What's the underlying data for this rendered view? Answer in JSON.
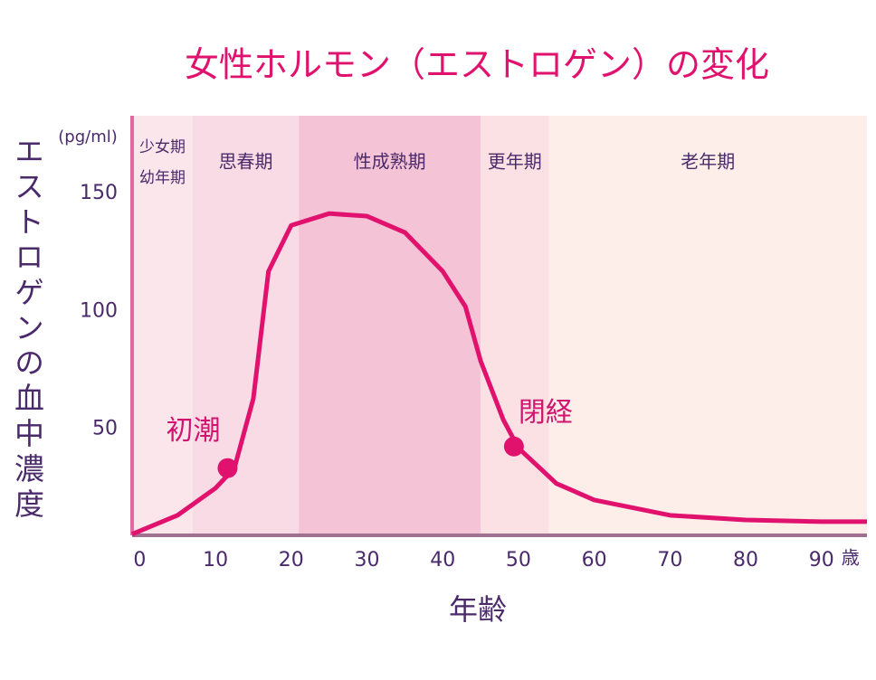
{
  "chart_data": {
    "type": "line",
    "title": "女性ホルモン（エストロゲン）の変化",
    "y_label": "エストロゲンの血中濃度",
    "y_unit": "(pg/ml)",
    "x_label": "年齢",
    "x_unit": "歳",
    "xlim": [
      -1,
      96
    ],
    "ylim": [
      5,
      183
    ],
    "xticks": [
      0,
      10,
      20,
      30,
      40,
      50,
      60,
      70,
      80,
      90
    ],
    "yticks": [
      50,
      100,
      150
    ],
    "grid": false,
    "bands": [
      {
        "start": -1,
        "end": 7,
        "label": [
          "少女期",
          "幼年期"
        ],
        "color": "#fbe6ec"
      },
      {
        "start": 7,
        "end": 21,
        "label": [
          "思春期"
        ],
        "color": "#f9dbe6"
      },
      {
        "start": 21,
        "end": 45,
        "label": [
          "性成熟期"
        ],
        "color": "#f5c3d6"
      },
      {
        "start": 45,
        "end": 54,
        "label": [
          "更年期"
        ],
        "color": "#fbe1e3"
      },
      {
        "start": 54,
        "end": 96,
        "label": [
          "老年期"
        ],
        "color": "#fdeeea"
      }
    ],
    "series": [
      {
        "color": "#e0126e",
        "x": [
          -1,
          5,
          10,
          12.5,
          15,
          17,
          20,
          25,
          30,
          35,
          40,
          43,
          45,
          48,
          50,
          55,
          60,
          70,
          80,
          90,
          96
        ],
        "values": [
          5.5,
          13.5,
          25,
          33.5,
          63,
          117,
          136.5,
          141.5,
          140.4,
          133.5,
          117,
          102,
          79,
          54,
          42,
          27,
          20,
          13.5,
          11.5,
          10.8,
          10.8
        ]
      }
    ],
    "annotations": [
      {
        "label": "初潮",
        "x": 11.6,
        "y": 33.5,
        "color": "#e0126e"
      },
      {
        "label": "閉経",
        "x": 49.4,
        "y": 42.7,
        "color": "#e0126e"
      }
    ]
  }
}
